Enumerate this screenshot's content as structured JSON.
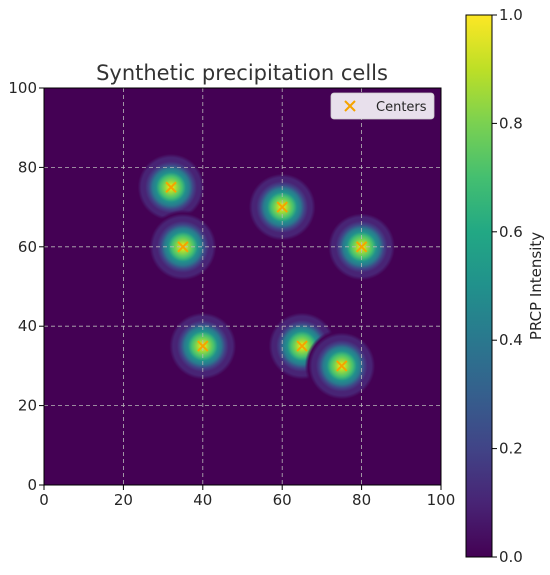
{
  "chart_data": {
    "type": "heatmap",
    "title": "Synthetic precipitation cells",
    "xlabel": "",
    "ylabel": "",
    "xlim": [
      0,
      100
    ],
    "ylim": [
      0,
      100
    ],
    "x_ticks": [
      0,
      20,
      40,
      60,
      80,
      100
    ],
    "y_ticks": [
      0,
      20,
      40,
      60,
      80,
      100
    ],
    "grid": true,
    "colormap": "viridis",
    "colorbar": {
      "label": "PRCP Intensity",
      "range": [
        0.0,
        1.0
      ],
      "ticks": [
        "0.0",
        "0.2",
        "0.4",
        "0.6",
        "0.8",
        "1.0"
      ]
    },
    "legend": {
      "position": "top-right",
      "entries": [
        {
          "label": "Centers",
          "marker": "x",
          "color": "#f5a300"
        }
      ]
    },
    "centers": [
      {
        "x": 32,
        "y": 75
      },
      {
        "x": 35,
        "y": 60
      },
      {
        "x": 60,
        "y": 70
      },
      {
        "x": 80,
        "y": 60
      },
      {
        "x": 40,
        "y": 35
      },
      {
        "x": 65,
        "y": 35
      },
      {
        "x": 75,
        "y": 30
      }
    ],
    "cell_peak_intensity": 1.0,
    "cell_sigma": 3.5
  }
}
